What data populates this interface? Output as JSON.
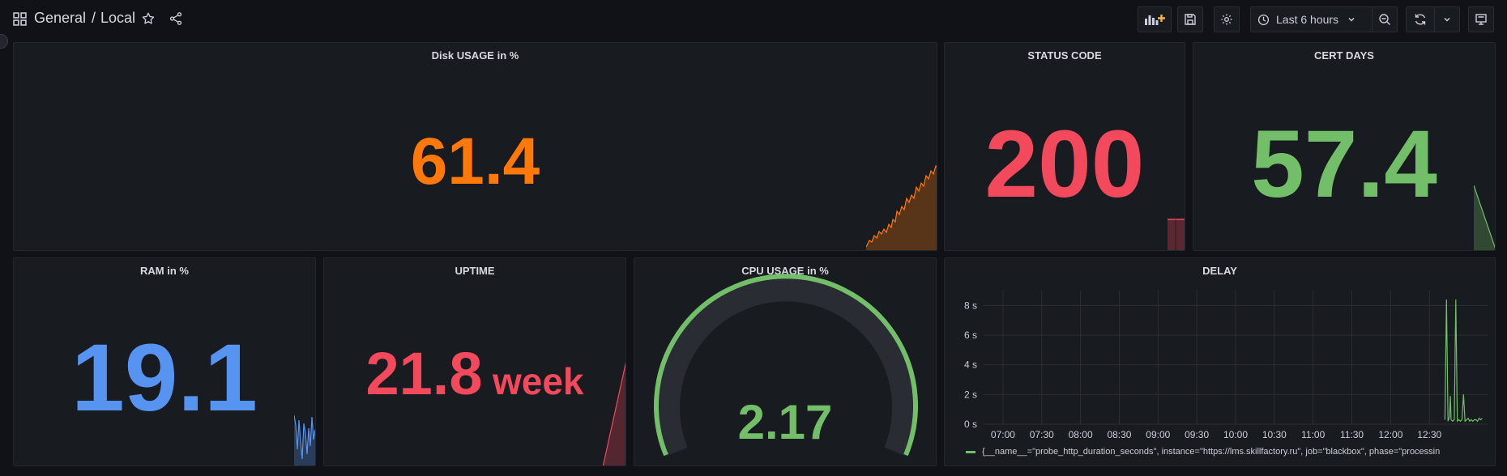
{
  "breadcrumb": {
    "folder": "General",
    "separator": "/",
    "dashboard": "Local"
  },
  "toolbar": {
    "time_range": "Last 6 hours"
  },
  "panels": {
    "disk": {
      "title": "Disk USAGE in %",
      "value": "61.4",
      "color": "#ff780a"
    },
    "status": {
      "title": "STATUS CODE",
      "value": "200",
      "color": "#f2495c"
    },
    "cert": {
      "title": "CERT DAYS",
      "value": "57.4",
      "color": "#73bf69"
    },
    "ram": {
      "title": "RAM in %",
      "value": "19.1",
      "color": "#5794f2"
    },
    "uptime": {
      "title": "UPTIME",
      "value": "21.8",
      "unit": "week",
      "color": "#f2495c"
    },
    "cpu": {
      "title": "CPU USAGE in %",
      "value": "2.17",
      "color": "#73bf69",
      "gauge_fraction": 0.02
    },
    "delay": {
      "title": "DELAY"
    }
  },
  "chart_data": {
    "type": "line",
    "x_ticks": [
      "07:00",
      "07:30",
      "08:00",
      "08:30",
      "09:00",
      "09:30",
      "10:00",
      "10:30",
      "11:00",
      "11:30",
      "12:00",
      "12:30"
    ],
    "y_ticks": [
      "0 s",
      "2 s",
      "4 s",
      "6 s",
      "8 s"
    ],
    "ylim": [
      0,
      9
    ],
    "series": [
      {
        "name": "{__name__=\"probe_http_duration_seconds\", instance=\"https://lms.skillfactory.ru\", job=\"blackbox\", phase=\"processin",
        "color": "#73bf69",
        "x_hours": [
          12.7,
          12.72,
          12.74,
          12.76,
          12.77,
          12.78,
          12.8,
          12.82,
          12.84,
          12.86,
          12.88,
          12.9,
          12.92,
          12.94,
          12.96,
          12.98,
          13.0,
          13.02,
          13.04,
          13.06,
          13.08,
          13.1,
          13.12,
          13.14,
          13.16,
          13.18
        ],
        "values": [
          0.3,
          8.4,
          0.2,
          0.5,
          1.9,
          0.3,
          0.2,
          0.3,
          8.4,
          0.2,
          0.3,
          0.2,
          0.3,
          2.0,
          0.2,
          0.3,
          0.4,
          0.2,
          0.3,
          0.2,
          0.3,
          0.3,
          0.2,
          0.4,
          0.3,
          0.4
        ]
      }
    ]
  }
}
